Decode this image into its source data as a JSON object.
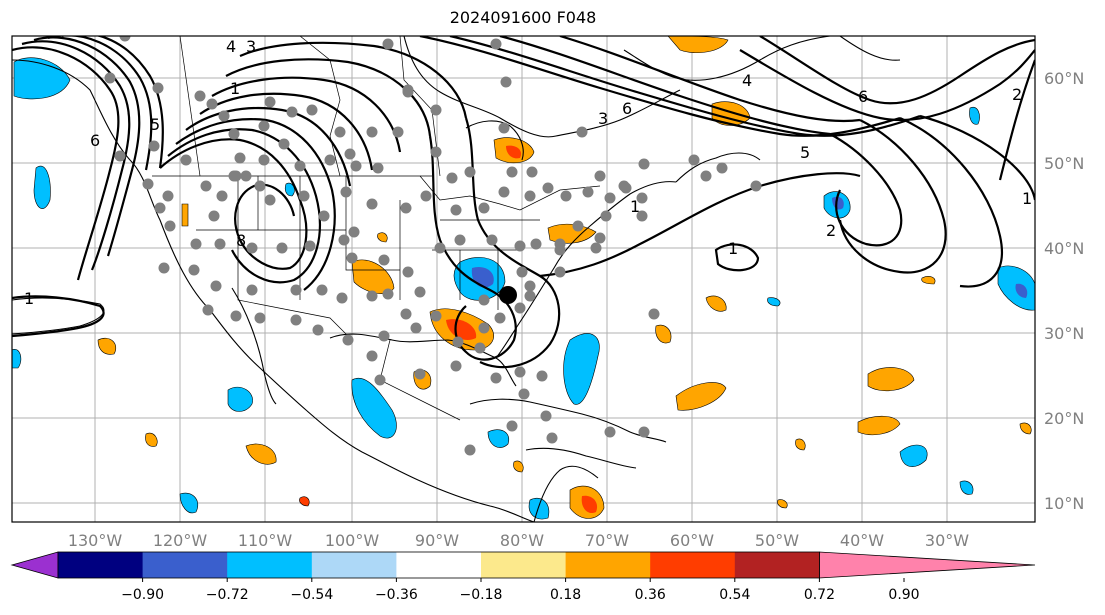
{
  "title": "2024091600 F048",
  "map": {
    "projection": "lat-lon",
    "lon_ticks": [
      "130°W",
      "120°W",
      "110°W",
      "100°W",
      "90°W",
      "80°W",
      "70°W",
      "60°W",
      "50°W",
      "40°W",
      "30°W"
    ],
    "lat_ticks": [
      "60°N",
      "50°N",
      "40°N",
      "30°N",
      "20°N",
      "10°N"
    ],
    "grid": true,
    "contour_labels": [
      "1",
      "1",
      "1",
      "1",
      "2",
      "2",
      "3",
      "3",
      "4",
      "4",
      "5",
      "5",
      "6",
      "6",
      "6",
      "8",
      "1"
    ],
    "colors": {
      "station_dot": "#808080",
      "center_marker": "#000000"
    }
  },
  "colorbar": {
    "ticks": [
      "−0.90",
      "−0.72",
      "−0.54",
      "−0.36",
      "−0.18",
      "0.18",
      "0.36",
      "0.54",
      "0.72",
      "0.90"
    ],
    "colors": [
      "#9b30d0",
      "#000080",
      "#3a5fcd",
      "#00bfff",
      "#add8f7",
      "#ffffff",
      "#fce98c",
      "#ffa500",
      "#ff3d00",
      "#b22222",
      "#ff82ab"
    ],
    "extend": "both"
  }
}
